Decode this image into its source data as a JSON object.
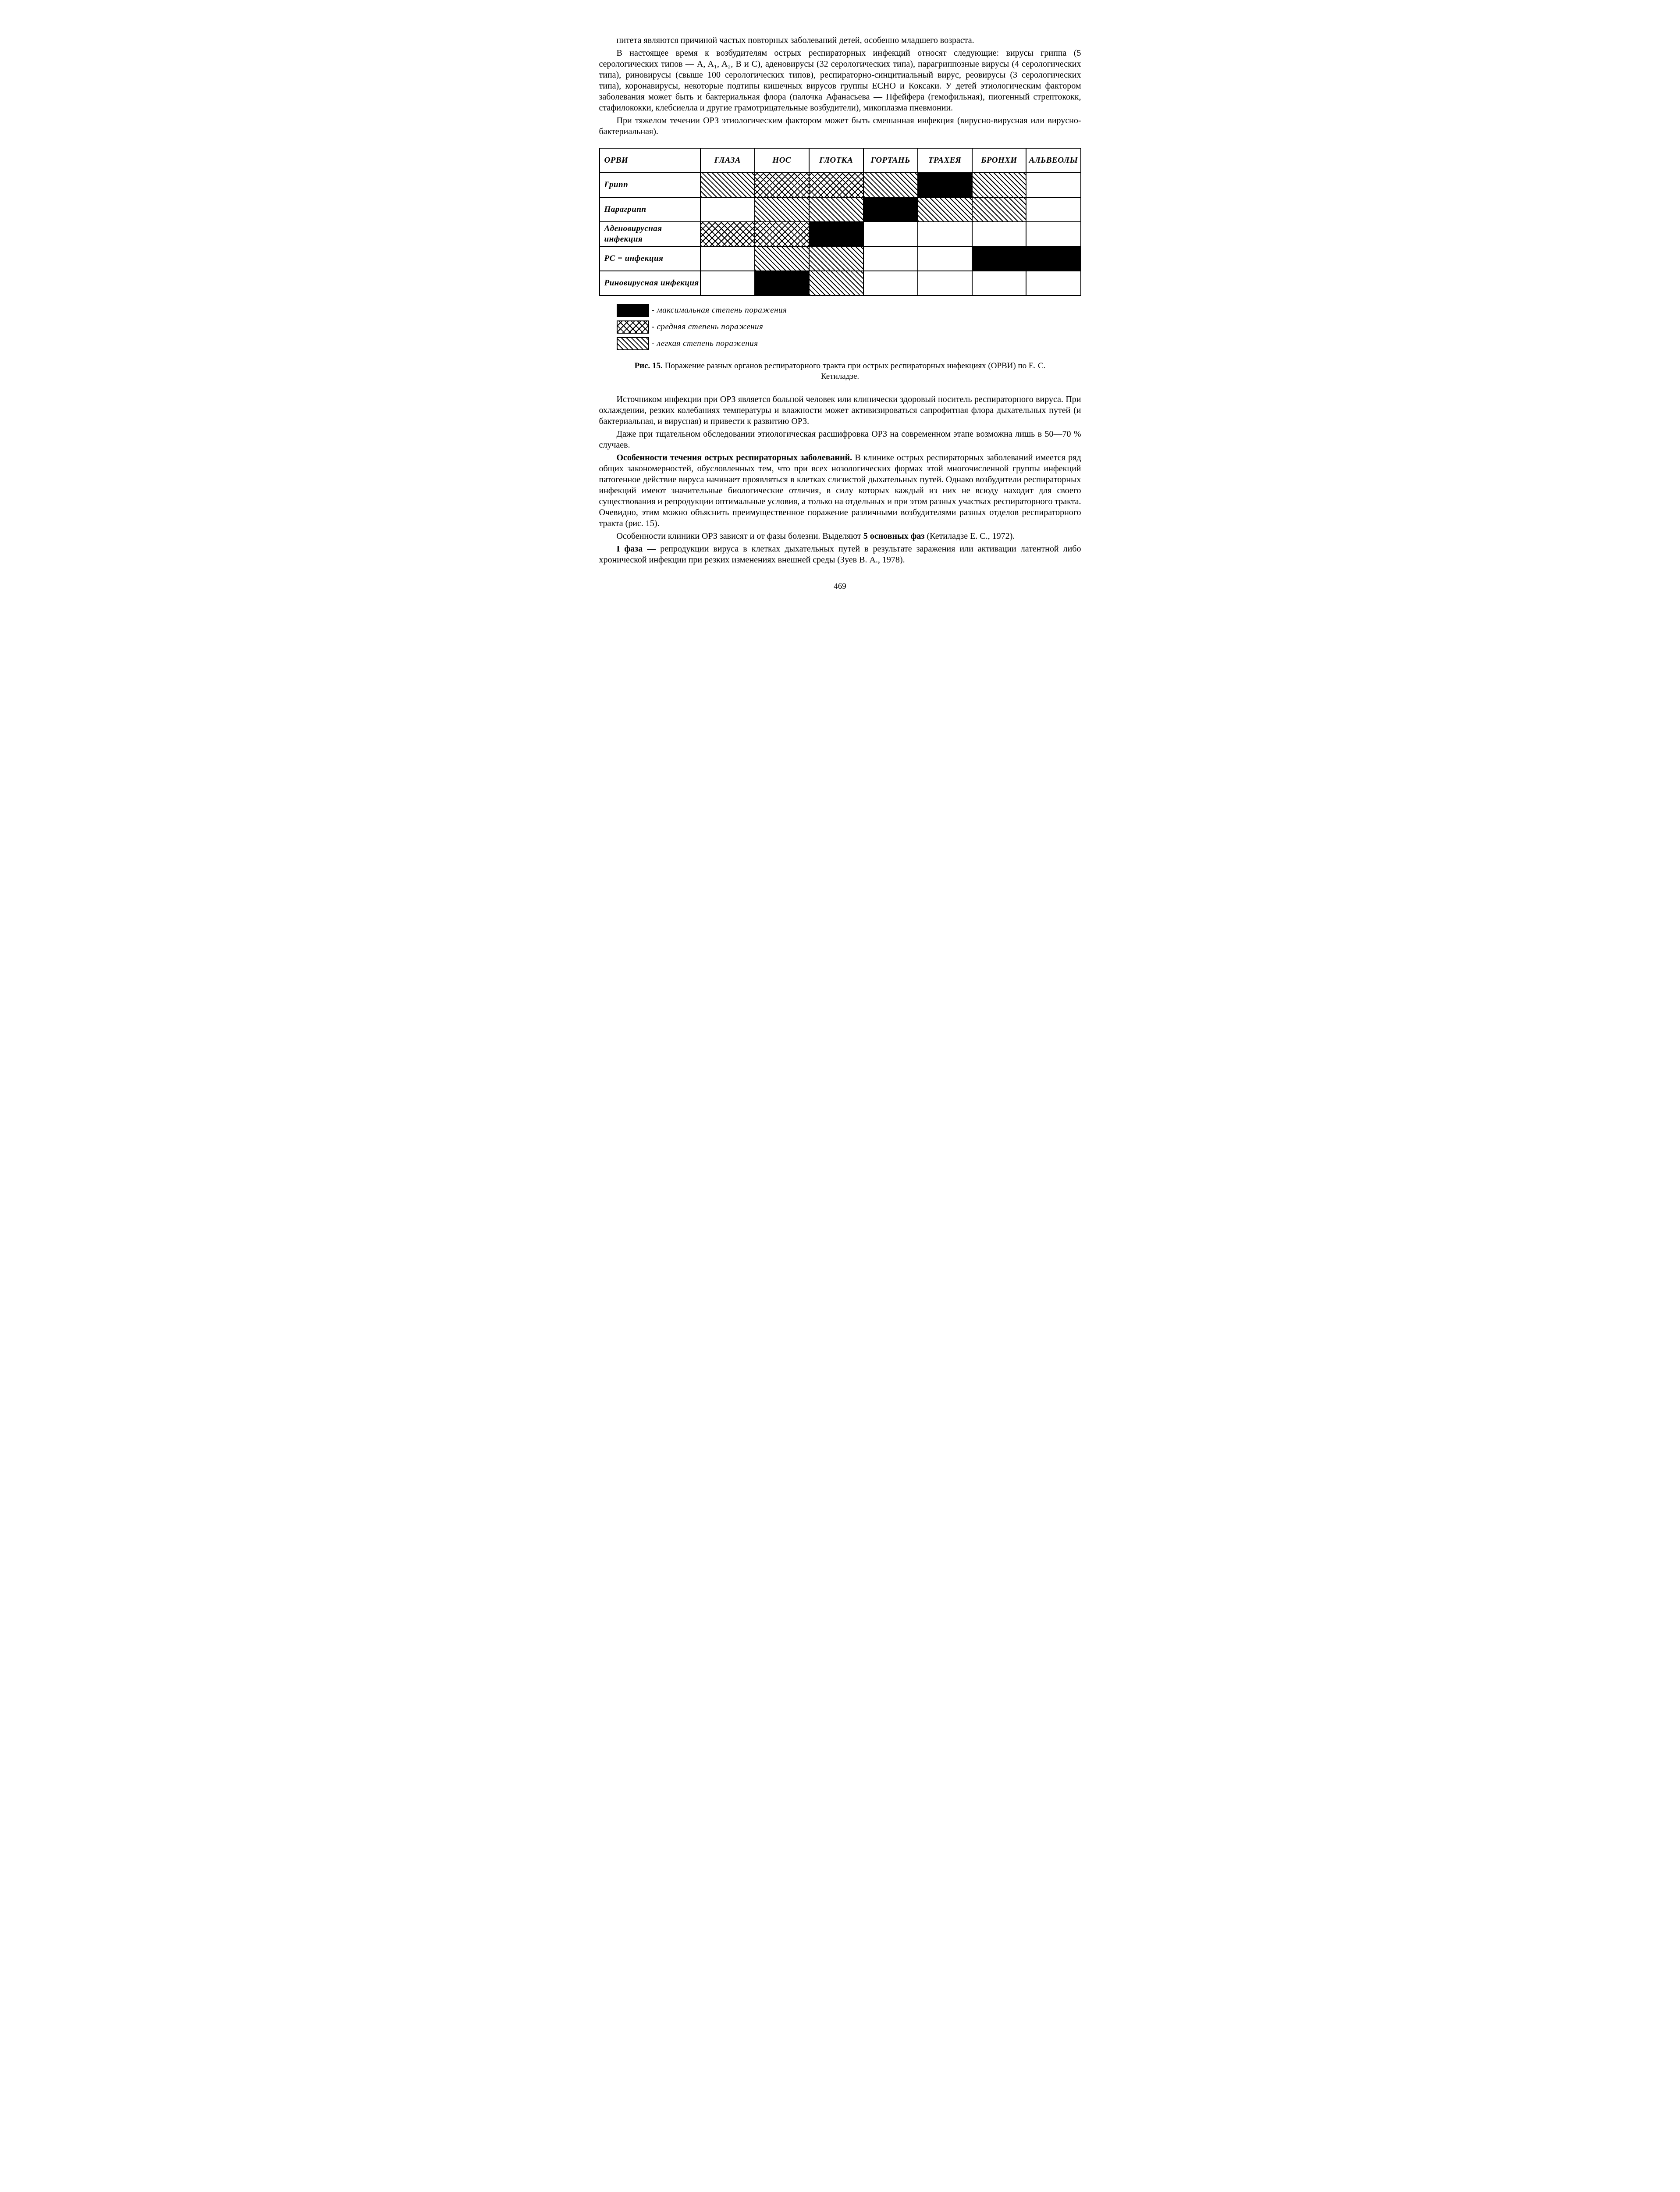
{
  "para1": "нитета являются причиной частых повторных заболеваний детей, особенно младшего возраста.",
  "para2": "В настоящее время к возбудителям острых респираторных инфекций относят следующие: вирусы гриппа (5 серологических типов — A, A₁, A₂, B и C), аденовирусы (32 серологических типа), парагриппозные вирусы (4 серологических типа), риновирусы (свыше 100 серологических типов), респираторно-синцитиальный вирус, реовирусы (3 серологических типа), коронавирусы, некоторые подтипы кишечных вирусов группы ECHO и Коксаки. У детей этиологическим фактором заболевания может быть и бактериальная флора (палочка Афанасьева — Пфейфера (гемофильная), пиогенный стрептококк, стафилококки, клебсиелла и другие грамотрицательные возбудители), микоплазма пневмонии.",
  "para3": "При тяжелом течении ОРЗ этиологическим фактором может быть смешанная инфекция (вирусно-вирусная или вирусно-бактериальная).",
  "table": {
    "columns": [
      "ОРВИ",
      "ГЛАЗА",
      "НОС",
      "ГЛОТКА",
      "ГОРТАНЬ",
      "ТРАХЕЯ",
      "БРОНХИ",
      "АЛЬВЕОЛЫ"
    ],
    "rows": [
      {
        "label": "Грипп",
        "cells": [
          "low",
          "med",
          "med",
          "low",
          "max",
          "low",
          "none"
        ]
      },
      {
        "label": "Парагрипп",
        "cells": [
          "none",
          "low",
          "low",
          "max",
          "low",
          "low",
          "none"
        ]
      },
      {
        "label": "Аденовирусная инфекция",
        "cells": [
          "med",
          "med",
          "max",
          "none",
          "none",
          "none",
          "none"
        ]
      },
      {
        "label": "РС = инфекция",
        "cells": [
          "none",
          "low",
          "low",
          "none",
          "none",
          "max",
          "max"
        ]
      },
      {
        "label": "Риновирусная инфекция",
        "cells": [
          "none",
          "max",
          "low",
          "none",
          "none",
          "none",
          "none"
        ]
      }
    ],
    "fill_class": {
      "max": "fill-max",
      "med": "fill-med",
      "low": "fill-low",
      "none": "fill-none"
    }
  },
  "legend": {
    "max": "максимальная степень поражения",
    "med": "средняя степень поражения",
    "low": "легкая степень поражения"
  },
  "caption_bold": "Рис. 15.",
  "caption_rest": " Поражение разных органов респираторного тракта при острых респираторных инфекциях (ОРВИ) по Е. С. Кетиладзе.",
  "para4": "Источником инфекции при ОРЗ является больной человек или клинически здоровый носитель респираторного вируса. При охлаждении, резких колебаниях температуры и влажности может активизироваться сапрофитная флора дыхательных путей (и бактериальная, и вирусная) и привести к развитию ОРЗ.",
  "para5": "Даже при тщательном обследовании этиологическая расшифровка ОРЗ на современном этапе возможна лишь в 50—70 % случаев.",
  "para6_bold": "Особенности течения острых респираторных заболеваний.",
  "para6_rest": " В клинике острых респираторных заболеваний имеется ряд общих закономерностей, обусловленных тем, что при всех нозологических формах этой многочисленной группы инфекций патогенное действие вируса начинает проявляться в клетках слизистой дыхательных путей. Однако возбудители респираторных инфекций имеют значительные биологические отличия, в силу которых каждый из них не всюду находит для своего существования и репродукции оптимальные условия, а только на отдельных и при этом разных участках респираторного тракта. Очевидно, этим можно объяснить преимущественное поражение различными возбудителями разных отделов респираторного тракта (рис. 15).",
  "para7_a": "Особенности клиники ОРЗ зависят и от фазы болезни. Выделяют ",
  "para7_bold": "5 основных фаз",
  "para7_b": " (Кетиладзе Е. С., 1972).",
  "para8_bold": "I фаза",
  "para8_rest": " — репродукции вируса в клетках дыхательных путей в результате заражения или активации латентной либо хронической инфекции при резких изменениях внешней среды (Зуев В. А., 1978).",
  "page_number": "469"
}
